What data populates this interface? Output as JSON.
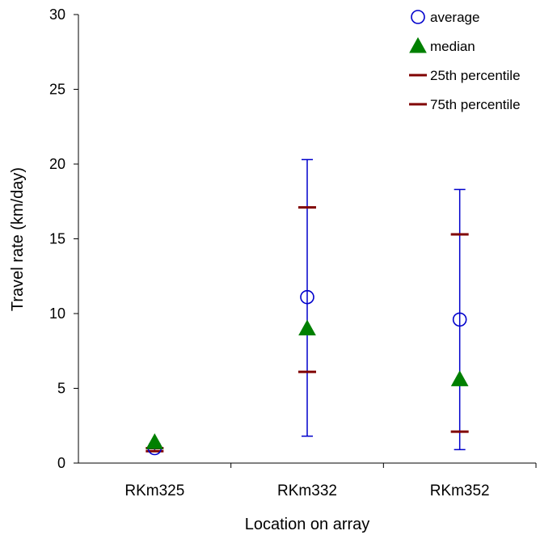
{
  "chart_data": {
    "type": "scatter",
    "xlabel": "Location on array",
    "ylabel": "Travel rate (km/day)",
    "categories": [
      "RKm325",
      "RKm332",
      "RKm352"
    ],
    "ylim": [
      0,
      30
    ],
    "yticks": [
      0,
      5,
      10,
      15,
      20,
      25,
      30
    ],
    "grid": false,
    "legend_position": "top-right",
    "error_bars": [
      {
        "low": 0.8,
        "high": 1.3
      },
      {
        "low": 1.8,
        "high": 20.3
      },
      {
        "low": 0.9,
        "high": 18.3
      }
    ],
    "series": [
      {
        "name": "average",
        "marker": "open-circle",
        "color": "#0000cc",
        "values": [
          1.0,
          11.1,
          9.6
        ]
      },
      {
        "name": "median",
        "marker": "filled-triangle",
        "color": "#008000",
        "values": [
          1.4,
          9.0,
          5.6
        ]
      },
      {
        "name": "25th percentile",
        "marker": "dash",
        "color": "#800000",
        "values": [
          0.8,
          6.1,
          2.1
        ]
      },
      {
        "name": "75th percentile",
        "marker": "dash",
        "color": "#800000",
        "values": [
          1.0,
          17.1,
          15.3
        ]
      }
    ]
  }
}
